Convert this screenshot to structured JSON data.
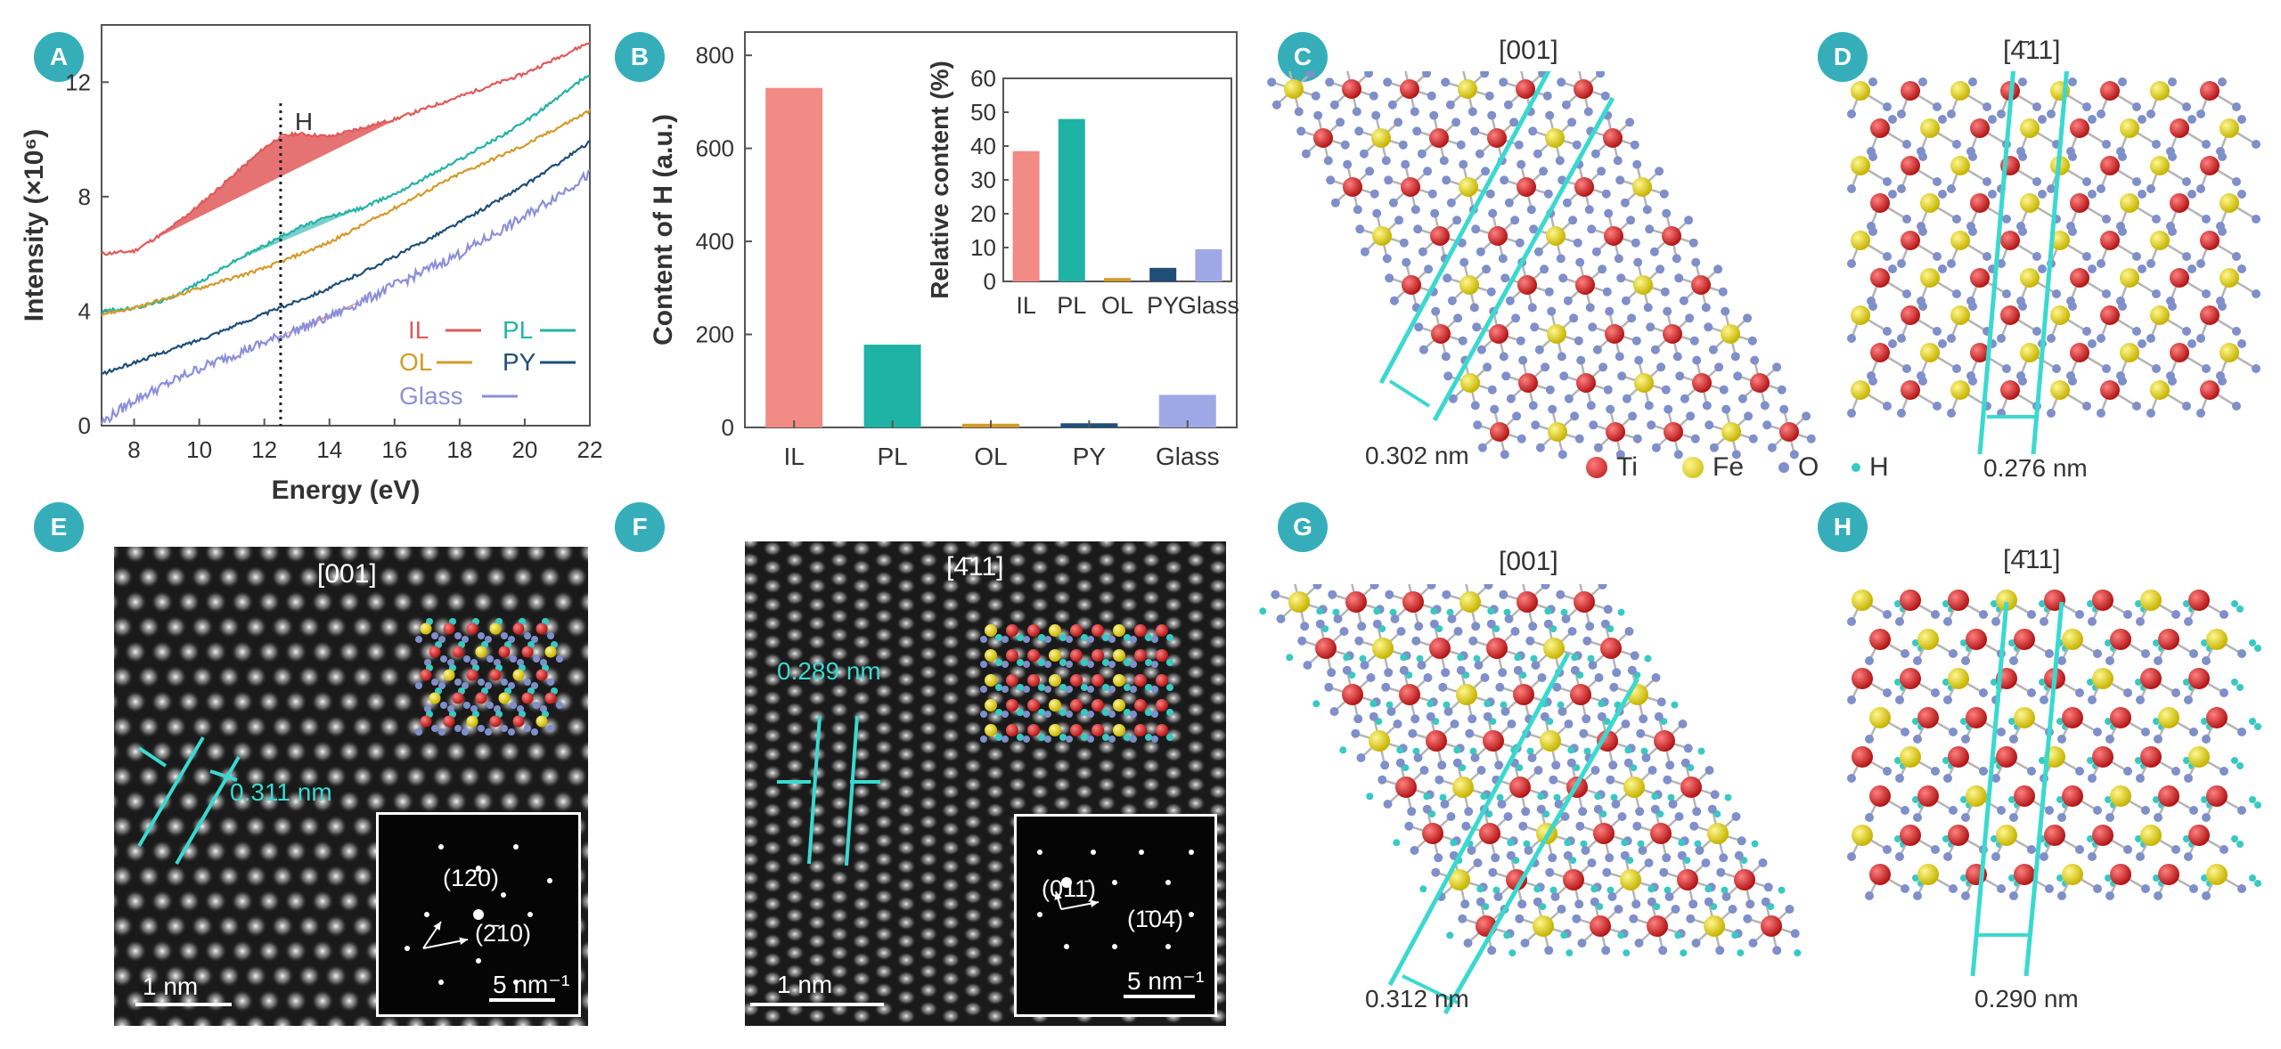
{
  "panels": {
    "A": {
      "badge": "A",
      "chart_data": {
        "type": "line",
        "xlabel": "Energy (eV)",
        "ylabel": "Intensity (×10⁶)",
        "xlim": [
          7,
          22
        ],
        "ylim": [
          0,
          14
        ],
        "x_ticks": [
          "8",
          "10",
          "12",
          "14",
          "16",
          "18",
          "20",
          "22"
        ],
        "y_ticks": [
          "0",
          "4",
          "8",
          "12"
        ],
        "marker_label": "H",
        "marker_x": 12.5,
        "series": [
          {
            "name": "IL",
            "color": "#e15a5a",
            "x": [
              7,
              8,
              9,
              10,
              11,
              12,
              12.5,
              13,
              14,
              16,
              18,
              20,
              22
            ],
            "y": [
              6.0,
              6.1,
              6.8,
              7.7,
              8.7,
              9.7,
              10.1,
              10.2,
              10.1,
              10.7,
              11.5,
              12.3,
              13.4
            ]
          },
          {
            "name": "PL",
            "color": "#22b3a6",
            "x": [
              7,
              8,
              9,
              10,
              11,
              12,
              13,
              14,
              15,
              16,
              18,
              20,
              22
            ],
            "y": [
              4.0,
              4.1,
              4.4,
              5.0,
              5.7,
              6.3,
              6.9,
              7.3,
              7.6,
              8.1,
              9.3,
              10.6,
              12.3
            ]
          },
          {
            "name": "OL",
            "color": "#d39b2a",
            "x": [
              7,
              8,
              10,
              12,
              14,
              16,
              18,
              20,
              22
            ],
            "y": [
              3.9,
              4.1,
              4.8,
              5.5,
              6.4,
              7.6,
              8.8,
              9.8,
              11.0
            ]
          },
          {
            "name": "PY",
            "color": "#1f4e79",
            "x": [
              7,
              8,
              10,
              12,
              14,
              16,
              18,
              20,
              22
            ],
            "y": [
              1.8,
              2.2,
              3.0,
              3.9,
              4.8,
              5.9,
              7.1,
              8.4,
              9.9
            ]
          },
          {
            "name": "Glass",
            "color": "#8c8fd9",
            "x": [
              7,
              8,
              10,
              12,
              14,
              16,
              18,
              20,
              22
            ],
            "y": [
              0.1,
              0.9,
              2.0,
              2.9,
              3.8,
              4.9,
              6.0,
              7.3,
              8.8
            ]
          }
        ]
      }
    },
    "B": {
      "badge": "B",
      "chart_data": {
        "type": "bar",
        "categories": [
          "IL",
          "PL",
          "OL",
          "PY",
          "Glass"
        ],
        "values": [
          730,
          178,
          8,
          9,
          70
        ],
        "colors": [
          "#f28a86",
          "#1fb3a6",
          "#d39b2a",
          "#1f4e79",
          "#9fa8e6"
        ],
        "ylabel": "Content of H (a.u.)",
        "ylim": [
          0,
          850
        ],
        "y_ticks": [
          "0",
          "200",
          "400",
          "600",
          "800"
        ],
        "inset": {
          "type": "bar",
          "categories": [
            "IL",
            "PL",
            "OL",
            "PY",
            "Glass"
          ],
          "values": [
            38.5,
            48,
            1,
            4,
            9.5
          ],
          "ylabel": "Relative content (%)",
          "ylim": [
            0,
            60
          ],
          "y_ticks": [
            "0",
            "10",
            "20",
            "30",
            "40",
            "50",
            "60"
          ]
        }
      }
    },
    "C": {
      "badge": "C",
      "direction": "[001]",
      "distance": "0.302 nm"
    },
    "D": {
      "badge": "D",
      "direction": "[4̄11]",
      "distance": "0.276 nm"
    },
    "E": {
      "badge": "E",
      "direction": "[001]",
      "distance": "0.311 nm",
      "spot1": "(12̄0)",
      "spot2": "(2̄10)",
      "scale_image": "1 nm",
      "scale_dp": "5 nm⁻¹"
    },
    "F": {
      "badge": "F",
      "direction": "[4̄11]",
      "distance": "0.289 nm",
      "spot1": "(011̄)",
      "spot2": "(1̄04̄)",
      "scale_image": "1 nm",
      "scale_dp": "5 nm⁻¹"
    },
    "G": {
      "badge": "G",
      "direction": "[001]",
      "distance": "0.312 nm"
    },
    "H": {
      "badge": "H",
      "direction": "[4̄11]",
      "distance": "0.290 nm"
    }
  },
  "atom_legend": [
    {
      "label": "Ti",
      "color": "#d42a2a",
      "size": "large"
    },
    {
      "label": "Fe",
      "color": "#e6d21e",
      "size": "large"
    },
    {
      "label": "O",
      "color": "#7f8fc9",
      "size": "small"
    },
    {
      "label": "H",
      "color": "#38c9c3",
      "size": "small"
    }
  ],
  "colors": {
    "badge": "#36aeba",
    "cyan": "#3ad9d0",
    "ti": "#d42a2a",
    "fe": "#e6d21e",
    "o": "#7f8fc9",
    "h": "#38c9c3"
  }
}
